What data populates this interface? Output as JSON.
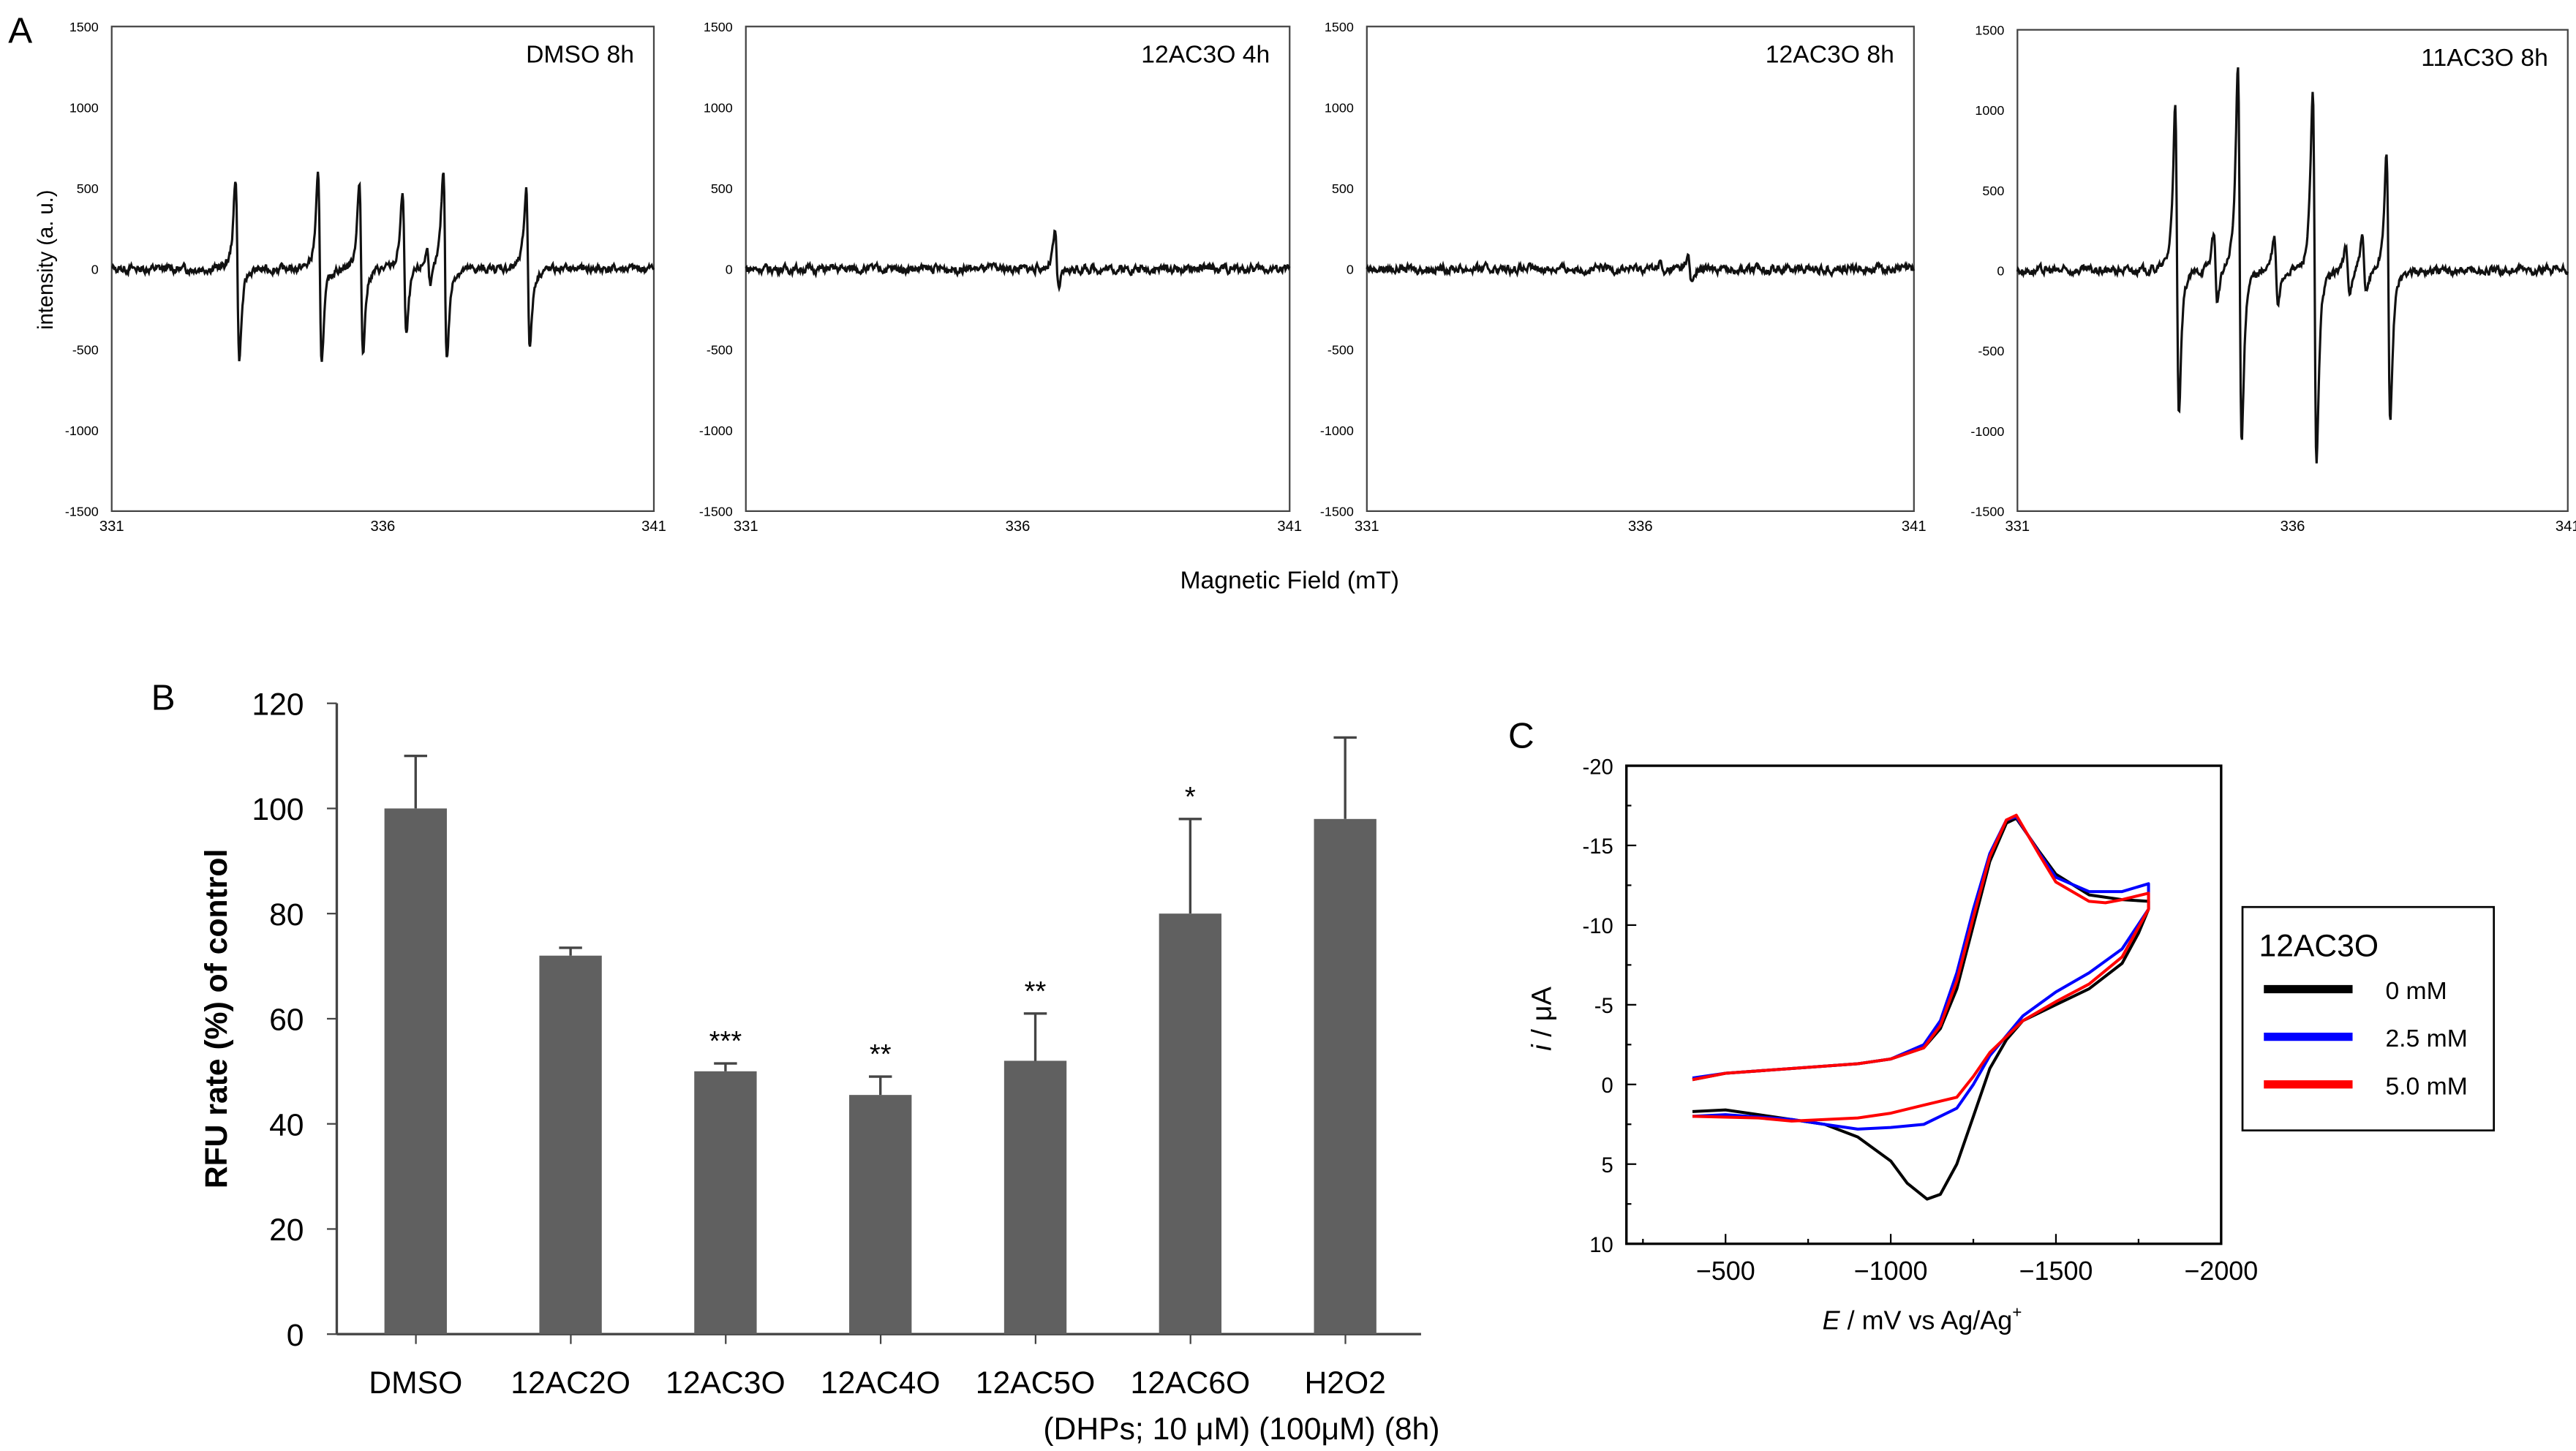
{
  "chart_data": [
    {
      "panel": "A",
      "type": "line",
      "ylabel": "intensity (a. u.)",
      "xlabel": "Magnetic Field (mT)",
      "xlim": [
        331,
        341
      ],
      "ylim": [
        -1500,
        1500
      ],
      "x_ticks": [
        "331",
        "336",
        "341"
      ],
      "y_ticks": [
        "1500",
        "1000",
        "500",
        "0",
        "-500",
        "-1000",
        "-1500"
      ],
      "line_model": "first-derivative EPR lines: center (mT), positive peak amplitude, negative peak amplitude",
      "series": [
        {
          "name": "DMSO 8h",
          "lines": [
            [
              333.32,
              560,
              -560
            ],
            [
              334.84,
              570,
              -570
            ],
            [
              335.6,
              520,
              -520
            ],
            [
              336.4,
              470,
              -420
            ],
            [
              336.85,
              110,
              -100
            ],
            [
              337.15,
              610,
              -550
            ],
            [
              338.68,
              500,
              -480
            ]
          ]
        },
        {
          "name": "12AC3O 4h",
          "lines": [
            [
              336.72,
              220,
              -120
            ]
          ]
        },
        {
          "name": "12AC3O 8h",
          "lines": [
            [
              336.9,
              80,
              -90
            ],
            [
              336.4,
              40,
              -40
            ]
          ]
        },
        {
          "name": "11AC3O 8h",
          "lines": [
            [
              333.9,
              1020,
              -900
            ],
            [
              334.6,
              220,
              -200
            ],
            [
              335.04,
              1300,
              -1050
            ],
            [
              335.7,
              200,
              -220
            ],
            [
              336.4,
              1100,
              -1220
            ],
            [
              337.0,
              150,
              -160
            ],
            [
              337.3,
              200,
              -150
            ],
            [
              337.74,
              720,
              -950
            ]
          ]
        }
      ]
    },
    {
      "panel": "B",
      "type": "bar",
      "ylabel": "RFU rate (%) of control",
      "ylim": [
        0,
        120
      ],
      "y_ticks": [
        "0",
        "20",
        "40",
        "60",
        "80",
        "100",
        "120"
      ],
      "categories": [
        "DMSO",
        "12AC2O",
        "12AC3O",
        "12AC4O",
        "12AC5O",
        "12AC6O",
        "H2O2"
      ],
      "values": [
        100,
        72,
        50,
        45.5,
        52,
        80,
        98
      ],
      "errors": [
        10,
        1.5,
        1.5,
        3.5,
        9,
        18,
        15.5
      ],
      "significance": [
        "",
        "",
        "***",
        "**",
        "**",
        "*",
        ""
      ],
      "footnote": "(DHPs; 10 μM) (100μM) (8h)",
      "bar_color": "#606060"
    },
    {
      "panel": "C",
      "type": "line",
      "xlabel_italic": "E",
      "xlabel_rest": " / mV vs Ag/Ag",
      "xlabel_sup": "+",
      "ylabel_italic": "i",
      "ylabel_rest": " / μA",
      "xlim": [
        -200,
        -2000
      ],
      "ylim": [
        -20,
        10
      ],
      "x_ticks": [
        "−500",
        "−1000",
        "−1500",
        "−2000"
      ],
      "y_ticks": [
        "-20",
        "-15",
        "-10",
        "-5",
        "0",
        "5",
        "10"
      ],
      "legend_title": "12AC3O",
      "legend_position": "right",
      "series": [
        {
          "name": "0 mM",
          "color": "#000000",
          "points": [
            [
              -400,
              -0.3
            ],
            [
              -500,
              -0.7
            ],
            [
              -700,
              -1.0
            ],
            [
              -900,
              -1.3
            ],
            [
              -1000,
              -1.6
            ],
            [
              -1100,
              -2.3
            ],
            [
              -1150,
              -3.5
            ],
            [
              -1200,
              -6
            ],
            [
              -1250,
              -10
            ],
            [
              -1300,
              -14
            ],
            [
              -1350,
              -16.4
            ],
            [
              -1380,
              -16.7
            ],
            [
              -1450,
              -14.6
            ],
            [
              -1500,
              -13.2
            ],
            [
              -1600,
              -11.9
            ],
            [
              -1700,
              -11.6
            ],
            [
              -1780,
              -11.5
            ],
            [
              -1780,
              -11
            ],
            [
              -1750,
              -9.5
            ],
            [
              -1700,
              -7.6
            ],
            [
              -1600,
              -6
            ],
            [
              -1500,
              -5
            ],
            [
              -1400,
              -4
            ],
            [
              -1350,
              -2.8
            ],
            [
              -1300,
              -1
            ],
            [
              -1250,
              2
            ],
            [
              -1200,
              5
            ],
            [
              -1150,
              6.9
            ],
            [
              -1110,
              7.2
            ],
            [
              -1050,
              6.2
            ],
            [
              -1000,
              4.8
            ],
            [
              -900,
              3.3
            ],
            [
              -800,
              2.5
            ],
            [
              -600,
              1.9
            ],
            [
              -500,
              1.6
            ],
            [
              -400,
              1.7
            ]
          ]
        },
        {
          "name": "2.5 mM",
          "color": "#0000ff",
          "points": [
            [
              -400,
              -0.4
            ],
            [
              -500,
              -0.7
            ],
            [
              -700,
              -1.0
            ],
            [
              -900,
              -1.3
            ],
            [
              -1000,
              -1.6
            ],
            [
              -1100,
              -2.5
            ],
            [
              -1150,
              -4
            ],
            [
              -1200,
              -7
            ],
            [
              -1250,
              -11
            ],
            [
              -1300,
              -14.5
            ],
            [
              -1350,
              -16.6
            ],
            [
              -1380,
              -16.8
            ],
            [
              -1450,
              -14.5
            ],
            [
              -1500,
              -13
            ],
            [
              -1600,
              -12.1
            ],
            [
              -1700,
              -12.1
            ],
            [
              -1780,
              -12.6
            ],
            [
              -1780,
              -11
            ],
            [
              -1700,
              -8.5
            ],
            [
              -1600,
              -7
            ],
            [
              -1500,
              -5.8
            ],
            [
              -1400,
              -4.3
            ],
            [
              -1300,
              -1.8
            ],
            [
              -1250,
              0
            ],
            [
              -1200,
              1.5
            ],
            [
              -1100,
              2.5
            ],
            [
              -1000,
              2.7
            ],
            [
              -900,
              2.8
            ],
            [
              -800,
              2.5
            ],
            [
              -700,
              2.2
            ],
            [
              -500,
              1.9
            ],
            [
              -400,
              2.0
            ]
          ]
        },
        {
          "name": "5.0 mM",
          "color": "#ff0000",
          "points": [
            [
              -400,
              -0.3
            ],
            [
              -500,
              -0.7
            ],
            [
              -700,
              -1.0
            ],
            [
              -900,
              -1.3
            ],
            [
              -1000,
              -1.6
            ],
            [
              -1100,
              -2.3
            ],
            [
              -1150,
              -3.7
            ],
            [
              -1200,
              -6.5
            ],
            [
              -1250,
              -10.5
            ],
            [
              -1300,
              -14.3
            ],
            [
              -1350,
              -16.6
            ],
            [
              -1380,
              -16.9
            ],
            [
              -1450,
              -14.4
            ],
            [
              -1500,
              -12.7
            ],
            [
              -1600,
              -11.5
            ],
            [
              -1650,
              -11.4
            ],
            [
              -1700,
              -11.6
            ],
            [
              -1780,
              -12
            ],
            [
              -1780,
              -11
            ],
            [
              -1700,
              -8
            ],
            [
              -1600,
              -6.3
            ],
            [
              -1500,
              -5.2
            ],
            [
              -1400,
              -4
            ],
            [
              -1300,
              -2
            ],
            [
              -1250,
              -0.5
            ],
            [
              -1200,
              0.8
            ],
            [
              -1100,
              1.3
            ],
            [
              -1000,
              1.8
            ],
            [
              -900,
              2.1
            ],
            [
              -700,
              2.3
            ],
            [
              -600,
              2.1
            ],
            [
              -400,
              2.0
            ]
          ]
        }
      ]
    }
  ],
  "labels": {
    "A": "A",
    "B": "B",
    "C": "C"
  }
}
